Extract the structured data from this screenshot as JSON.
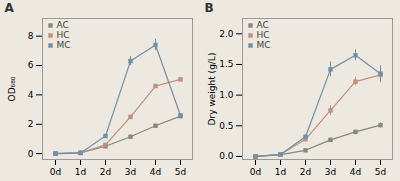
{
  "chart_data": [
    {
      "type": "line",
      "title": "A",
      "y_label": "OD₆₈₀",
      "categories": [
        "0d",
        "1d",
        "2d",
        "3d",
        "4d",
        "5d"
      ],
      "series": [
        {
          "name": "AC",
          "color": "#888880",
          "marker": "square",
          "values": [
            0.0,
            0.05,
            0.5,
            1.15,
            1.9,
            2.55
          ],
          "yerr": [
            0.01,
            0.01,
            0.05,
            0.08,
            0.08,
            0.08
          ]
        },
        {
          "name": "HC",
          "color": "#c09080",
          "marker": "square",
          "values": [
            0.0,
            0.05,
            0.6,
            2.5,
            4.6,
            5.05
          ],
          "yerr": [
            0.01,
            0.01,
            0.06,
            0.12,
            0.12,
            0.12
          ]
        },
        {
          "name": "MC",
          "color": "#7090a8",
          "marker": "square",
          "values": [
            0.0,
            0.05,
            1.2,
            6.3,
            7.4,
            2.6
          ],
          "yerr": [
            0.01,
            0.01,
            0.1,
            0.3,
            0.4,
            0.1
          ]
        }
      ],
      "ylim": [
        -0.4,
        9.2
      ],
      "yticks": [
        0,
        2,
        4,
        6,
        8
      ],
      "grid": false,
      "legend": "upper left"
    },
    {
      "type": "line",
      "title": "B",
      "y_label": "Dry weight (g/L)",
      "categories": [
        "0d",
        "1d",
        "2d",
        "3d",
        "4d",
        "5d"
      ],
      "series": [
        {
          "name": "AC",
          "color": "#888880",
          "marker": "square",
          "values": [
            0.0,
            0.03,
            0.1,
            0.27,
            0.4,
            0.51
          ],
          "yerr": [
            0.005,
            0.005,
            0.015,
            0.025,
            0.025,
            0.04
          ]
        },
        {
          "name": "HC",
          "color": "#c09080",
          "marker": "square",
          "values": [
            0.0,
            0.03,
            0.28,
            0.75,
            1.22,
            1.33
          ],
          "yerr": [
            0.005,
            0.005,
            0.035,
            0.08,
            0.07,
            0.13
          ]
        },
        {
          "name": "MC",
          "color": "#7090a8",
          "marker": "square",
          "values": [
            0.0,
            0.03,
            0.32,
            1.42,
            1.65,
            1.35
          ],
          "yerr": [
            0.005,
            0.005,
            0.035,
            0.12,
            0.09,
            0.13
          ]
        }
      ],
      "ylim": [
        -0.05,
        2.25
      ],
      "yticks": [
        {
          "value": 0.0,
          "label": "0.0"
        },
        0.5,
        {
          "value": 1.0,
          "label": "1.0"
        },
        1.5,
        {
          "value": 2.0,
          "label": "2.0"
        }
      ],
      "grid": false,
      "legend": "upper left"
    }
  ]
}
